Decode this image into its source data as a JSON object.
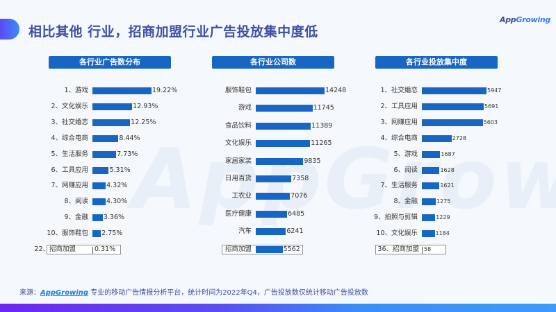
{
  "page": {
    "title": "相比其他 行业，招商加盟行业广告投放集中度低",
    "logo": {
      "part1": "App",
      "part2": "Growing"
    },
    "watermark": "AppGrowing",
    "source": {
      "prefix": "来源：",
      "brand": "AppGrowing",
      "text": " 专业的移动广告情报分析平台，统计时间为2022年Q4，广告投放数仅统计移动广告投放数"
    },
    "colors": {
      "bar": "#1766c4",
      "title": "#3d4fa8",
      "header_bg": "#1766c4"
    }
  },
  "chart_data": [
    {
      "type": "bar",
      "orientation": "horizontal",
      "title": "各行业广告数分布",
      "categories": [
        "1、游戏",
        "2、文化娱乐",
        "3、社交婚恋",
        "4、综合电商",
        "5、生活服务",
        "6、工具应用",
        "7、网赚应用",
        "8、阅读",
        "9、金融",
        "10、服饰鞋包"
      ],
      "values": [
        19.22,
        12.93,
        12.25,
        8.44,
        7.73,
        5.31,
        4.32,
        4.3,
        3.36,
        2.75
      ],
      "value_labels": [
        "19.22%",
        "12.93%",
        "12.25%",
        "8.44%",
        "7.73%",
        "5.31%",
        "4.32%",
        "4.30%",
        "3.36%",
        "2.75%"
      ],
      "highlight": {
        "label": "22、招商加盟",
        "value": 0.31,
        "value_label": "0.31%"
      },
      "unit": "%",
      "grid": false
    },
    {
      "type": "bar",
      "orientation": "horizontal",
      "title": "各行业公司数",
      "categories": [
        "服饰鞋包",
        "游戏",
        "食品饮料",
        "文化娱乐",
        "家居家装",
        "日用百货",
        "工农业",
        "医疗健康",
        "汽车"
      ],
      "values": [
        14248,
        11745,
        11389,
        11265,
        9835,
        7358,
        7076,
        6485,
        6241
      ],
      "value_labels": [
        "14248",
        "11745",
        "11389",
        "11265",
        "9835",
        "7358",
        "7076",
        "6485",
        "6241"
      ],
      "highlight": {
        "label": "招商加盟",
        "value": 5562,
        "value_label": "5562"
      },
      "grid": false
    },
    {
      "type": "bar",
      "orientation": "horizontal",
      "title": "各行业投放集中度",
      "categories": [
        "1、社交婚恋",
        "2、工具应用",
        "3、网赚应用",
        "4、综合电商",
        "5、游戏",
        "6、阅读",
        "7、生活服务",
        "8、金融",
        "9、拍照与剪辑",
        "10、文化娱乐"
      ],
      "values": [
        5947,
        5691,
        5603,
        2728,
        1687,
        1628,
        1621,
        1275,
        1229,
        1184
      ],
      "value_labels": [
        "5947",
        "5691",
        "5603",
        "2728",
        "1687",
        "1628",
        "1621",
        "1275",
        "1229",
        "1184"
      ],
      "highlight": {
        "label": "36、招商加盟",
        "value": 58,
        "value_label": "58"
      },
      "grid": false
    }
  ]
}
